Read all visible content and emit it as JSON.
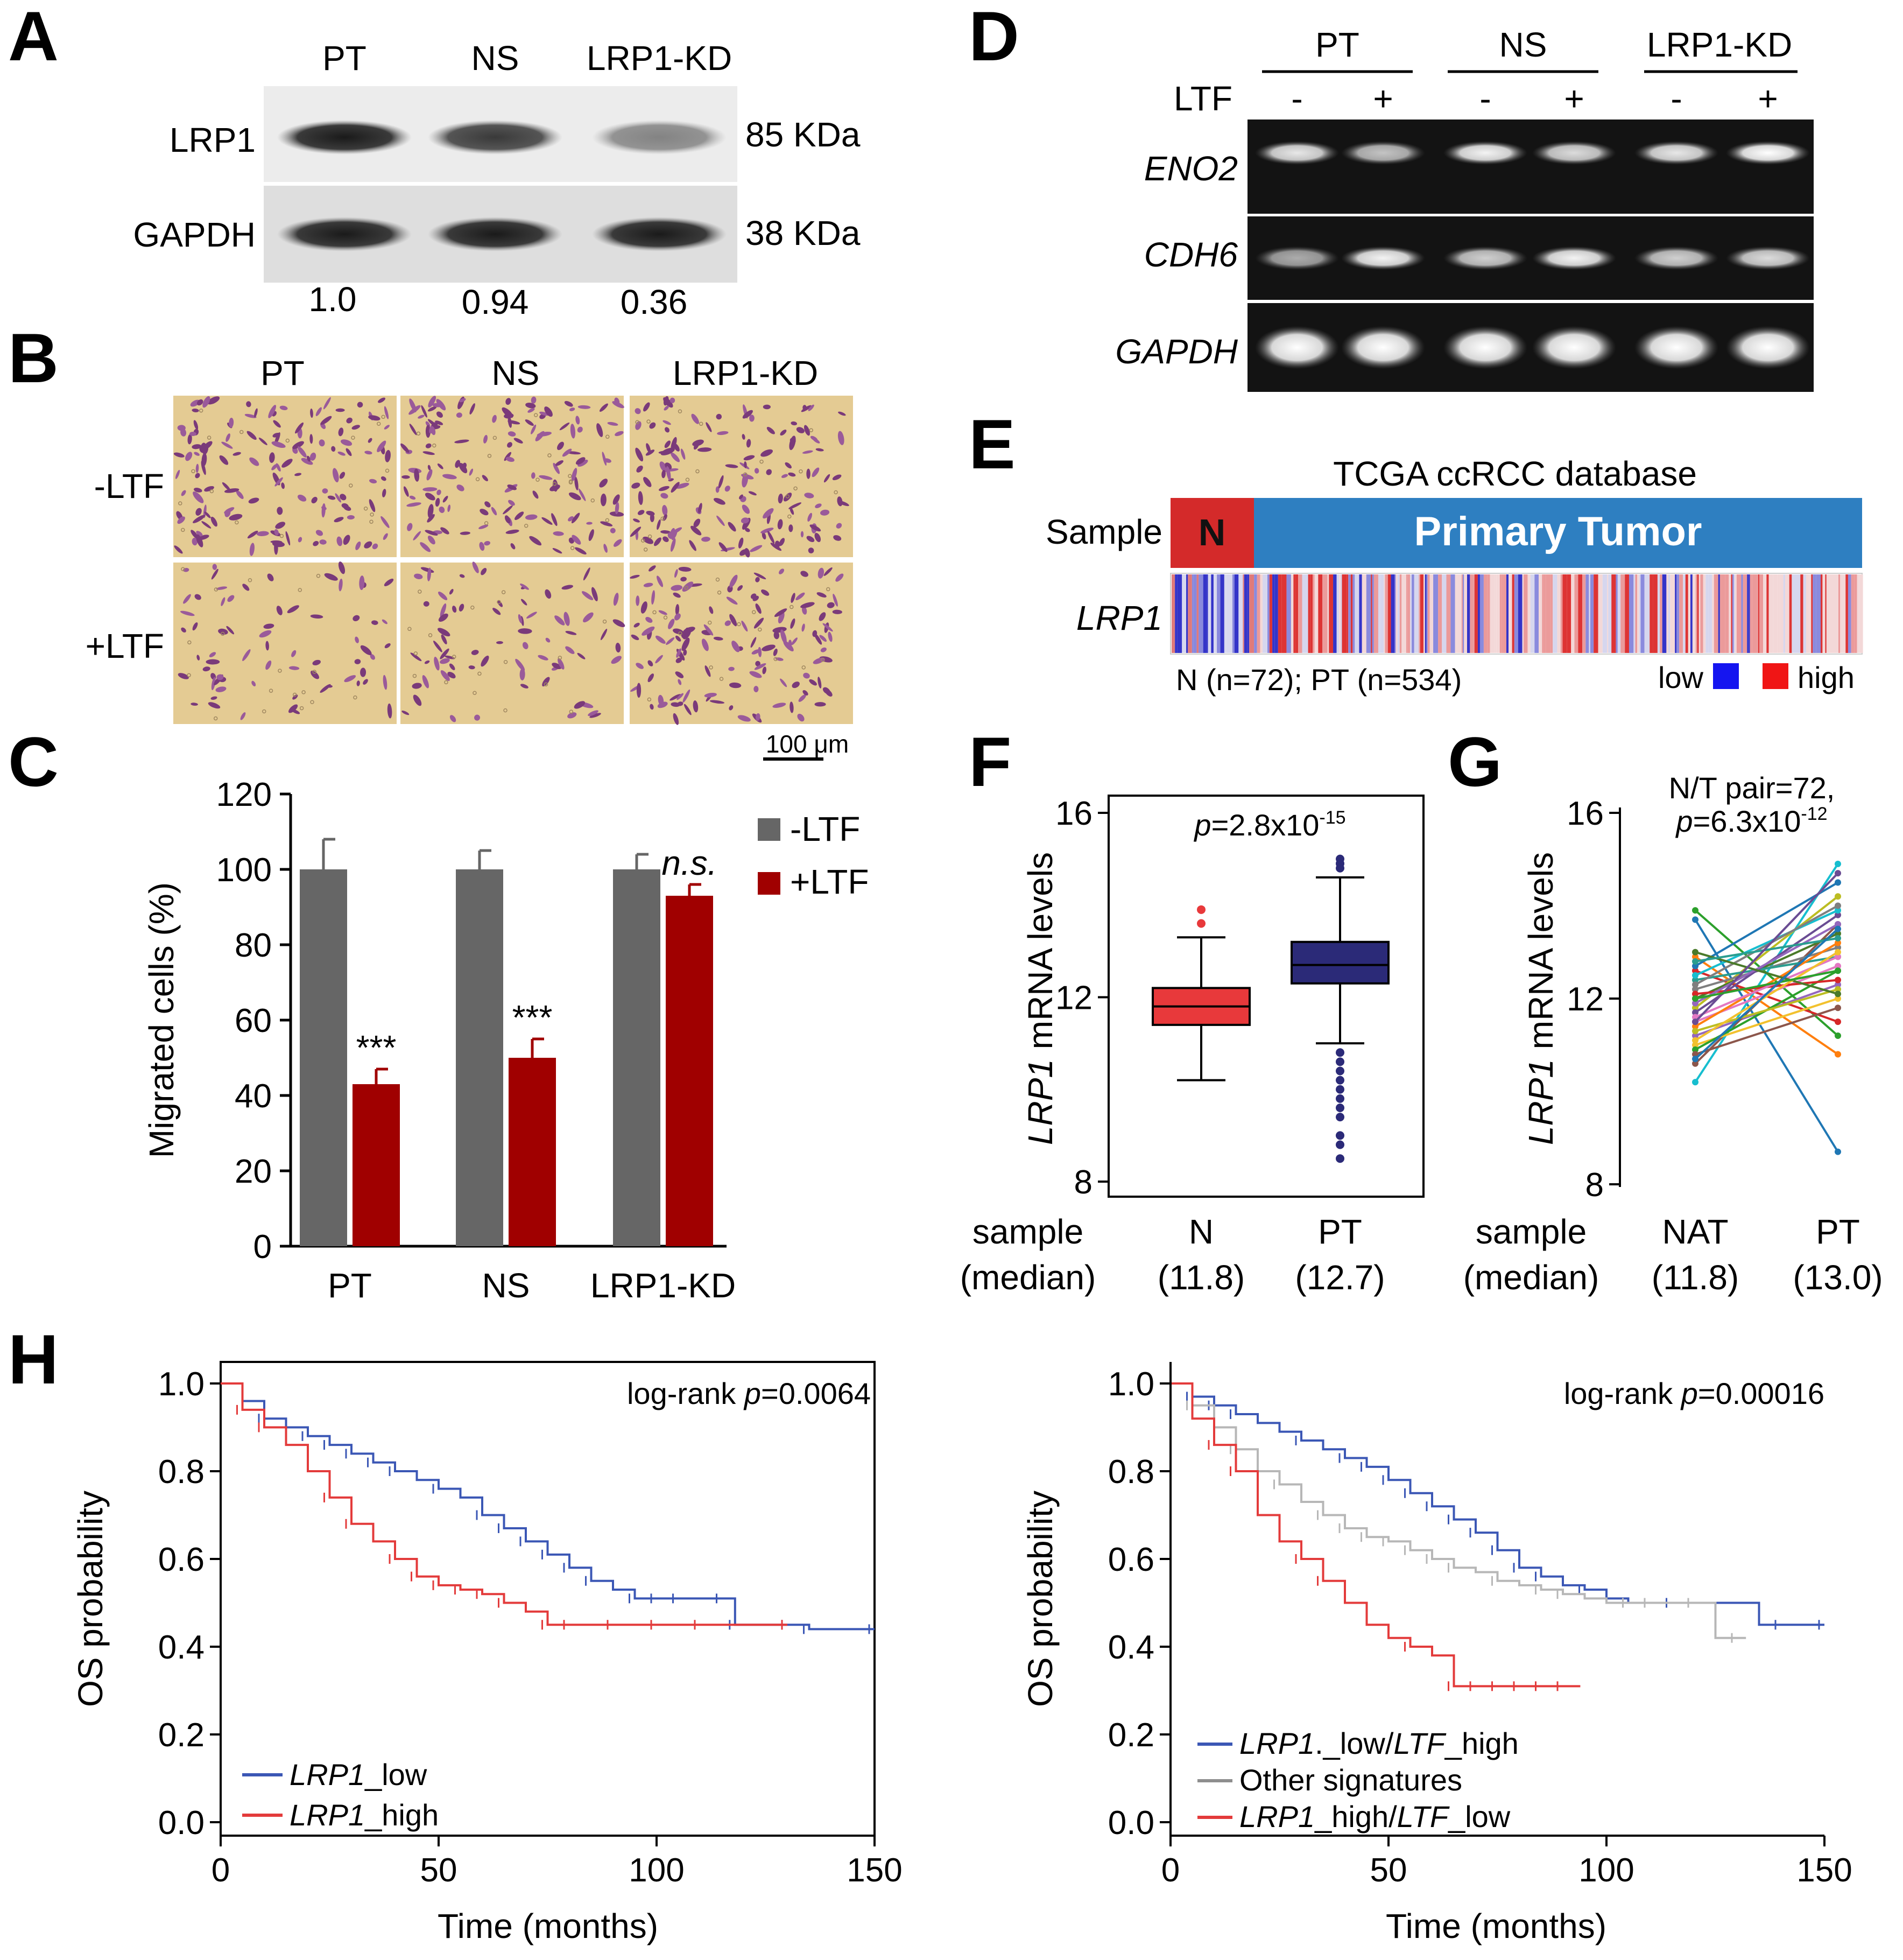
{
  "colors": {
    "grey_bar": "#666666",
    "red_bar": "#a00000",
    "box_n": "#e8393b",
    "box_pt": "#2b2a78",
    "km_low": "#3b57b5",
    "km_high": "#e33b3b",
    "km_other": "#b7b7b7",
    "tumor_bar": "#2e7fc1",
    "normal_bar": "#d42a2a",
    "heat_low": "#2b2bd6",
    "heat_high": "#e32020"
  },
  "panel_letters": [
    "A",
    "B",
    "C",
    "D",
    "E",
    "F",
    "G",
    "H"
  ],
  "panel_a": {
    "lanes": [
      "PT",
      "NS",
      "LRP1-KD"
    ],
    "rows": [
      {
        "name": "LRP1",
        "size": "85 KDa",
        "intensity": [
          1.0,
          0.85,
          0.5
        ]
      },
      {
        "name": "GAPDH",
        "size": "38 KDa",
        "intensity": [
          1.0,
          1.0,
          1.0
        ]
      }
    ],
    "quant": [
      "1.0",
      "0.94",
      "0.36"
    ]
  },
  "panel_b": {
    "columns": [
      "PT",
      "NS",
      "LRP1-KD"
    ],
    "rows": [
      "-LTF",
      "+LTF"
    ],
    "cell_density": [
      [
        1.0,
        1.0,
        1.0
      ],
      [
        0.45,
        0.5,
        0.95
      ]
    ],
    "scale_label": "100 μm"
  },
  "panel_c": {
    "chart_data": {
      "type": "bar",
      "categories": [
        "PT",
        "NS",
        "LRP1-KD"
      ],
      "series": [
        {
          "name": "-LTF",
          "values": [
            100,
            100,
            100
          ],
          "errors": [
            8,
            5,
            4
          ]
        },
        {
          "name": "+LTF",
          "values": [
            43,
            50,
            93
          ],
          "errors": [
            4,
            5,
            3
          ]
        }
      ],
      "annotations": [
        "***",
        "***",
        "n.s."
      ],
      "ylabel": "Migrated cells (%)",
      "yticks": [
        "0",
        "20",
        "40",
        "60",
        "80",
        "100",
        "120"
      ],
      "ylim": [
        0,
        120
      ]
    }
  },
  "panel_d": {
    "groups": [
      "PT",
      "NS",
      "LRP1-KD"
    ],
    "treatment_label": "LTF",
    "treatments": [
      "-",
      "+",
      "-",
      "+",
      "-",
      "+"
    ],
    "genes": [
      {
        "name": "ENO2",
        "intensity": [
          0.9,
          0.75,
          0.95,
          0.85,
          0.9,
          1.0
        ]
      },
      {
        "name": "CDH6",
        "intensity": [
          0.65,
          0.95,
          0.8,
          0.95,
          0.8,
          0.85
        ]
      },
      {
        "name": "GAPDH",
        "intensity": [
          1,
          1,
          1,
          1,
          1,
          1
        ]
      }
    ]
  },
  "panel_e": {
    "title": "TCGA ccRCC database",
    "sample_label": "Sample",
    "n_label": "N",
    "tumor_label": "Primary Tumor",
    "gene_label": "LRP1",
    "counts_label": "N (n=72); PT (n=534)",
    "legend_low": "low",
    "legend_high": "high"
  },
  "panel_f": {
    "chart_data": {
      "type": "box",
      "ylabel_gene": "LRP1",
      "ylabel_rest": " mRNA levels",
      "p_prefix": "p",
      "p_text": "=2.8x10",
      "p_exp": "-15",
      "yticks": [
        "8",
        "12",
        "16"
      ],
      "ylim": [
        8,
        16
      ],
      "row_label_1": "sample",
      "row_label_2": "(median)",
      "groups": [
        {
          "name": "N",
          "median_label": "(11.8)",
          "q1": 11.4,
          "median": 11.8,
          "q3": 12.2,
          "whisker_low": 10.2,
          "whisker_high": 13.3,
          "outliers": [
            13.6,
            13.9
          ]
        },
        {
          "name": "PT",
          "median_label": "(12.7)",
          "q1": 12.3,
          "median": 12.7,
          "q3": 13.2,
          "whisker_low": 11.0,
          "whisker_high": 14.6,
          "outliers": [
            15.0,
            14.9,
            14.8,
            10.8,
            10.6,
            10.4,
            10.2,
            10.0,
            9.8,
            9.6,
            9.4,
            9.0,
            8.8,
            8.5
          ]
        }
      ]
    }
  },
  "panel_g": {
    "chart_data": {
      "type": "paired-line",
      "ylabel_gene": "LRP1",
      "ylabel_rest": " mRNA levels",
      "title_line1": "N/T pair=72,",
      "p_prefix": "p",
      "p_text": "=6.3x10",
      "p_exp": "-12",
      "yticks": [
        "8",
        "12",
        "16"
      ],
      "ylim": [
        8,
        16
      ],
      "row_label_1": "sample",
      "row_label_2": "(median)",
      "groups": [
        {
          "name": "NAT",
          "median_label": "(11.8)"
        },
        {
          "name": "PT",
          "median_label": "(13.0)"
        }
      ],
      "pairs": [
        [
          13.9,
          11.2
        ],
        [
          13.7,
          8.7
        ],
        [
          12.9,
          10.8
        ],
        [
          12.6,
          11.5
        ],
        [
          11.2,
          12.3
        ],
        [
          10.6,
          13.6
        ],
        [
          10.2,
          14.9
        ],
        [
          11.8,
          14.2
        ],
        [
          12.2,
          13.1
        ],
        [
          11.5,
          12.7
        ],
        [
          12.0,
          13.4
        ],
        [
          11.0,
          12.0
        ],
        [
          12.4,
          12.9
        ],
        [
          11.7,
          13.8
        ],
        [
          10.9,
          12.6
        ],
        [
          12.7,
          14.5
        ],
        [
          11.4,
          13.2
        ],
        [
          12.1,
          12.4
        ],
        [
          11.9,
          13.6
        ],
        [
          10.8,
          11.8
        ],
        [
          12.5,
          13.9
        ],
        [
          11.3,
          12.2
        ],
        [
          12.3,
          14.0
        ],
        [
          11.6,
          12.9
        ],
        [
          13.0,
          12.1
        ],
        [
          11.1,
          13.0
        ],
        [
          12.8,
          13.3
        ],
        [
          11.5,
          14.7
        ],
        [
          12.0,
          12.6
        ],
        [
          10.7,
          13.5
        ]
      ]
    }
  },
  "panel_h1": {
    "chart_data": {
      "type": "line",
      "xlabel": "Time (months)",
      "ylabel": "OS probability",
      "xticks": [
        "0",
        "50",
        "100",
        "150"
      ],
      "yticks": [
        "0.0",
        "0.2",
        "0.4",
        "0.6",
        "0.8",
        "1.0"
      ],
      "xlim": [
        0,
        150
      ],
      "ylim": [
        0,
        1
      ],
      "logrank_prefix": "log-rank ",
      "p_prefix": "p",
      "p_value": "=0.0064",
      "series": [
        {
          "name": "LRP1_low",
          "gene": "LRP1",
          "suffix": "_low",
          "x": [
            0,
            5,
            10,
            15,
            20,
            25,
            30,
            35,
            40,
            45,
            50,
            55,
            60,
            65,
            70,
            75,
            80,
            85,
            90,
            95,
            100,
            105,
            110,
            115,
            118,
            120,
            125,
            130,
            135,
            150
          ],
          "y": [
            1.0,
            0.96,
            0.92,
            0.9,
            0.88,
            0.86,
            0.84,
            0.82,
            0.8,
            0.78,
            0.76,
            0.74,
            0.7,
            0.67,
            0.64,
            0.61,
            0.58,
            0.55,
            0.53,
            0.51,
            0.51,
            0.51,
            0.51,
            0.51,
            0.45,
            0.45,
            0.45,
            0.45,
            0.44,
            0.44
          ]
        },
        {
          "name": "LRP1_high",
          "gene": "LRP1",
          "suffix": "_high",
          "x": [
            0,
            5,
            10,
            15,
            20,
            25,
            30,
            35,
            40,
            45,
            50,
            55,
            60,
            65,
            70,
            75,
            80,
            90,
            100,
            110,
            120,
            130
          ],
          "y": [
            1.0,
            0.94,
            0.9,
            0.86,
            0.8,
            0.74,
            0.68,
            0.64,
            0.6,
            0.56,
            0.54,
            0.53,
            0.52,
            0.5,
            0.48,
            0.45,
            0.45,
            0.45,
            0.45,
            0.45,
            0.45,
            0.45
          ]
        }
      ]
    }
  },
  "panel_h2": {
    "chart_data": {
      "type": "line",
      "xlabel": "Time (months)",
      "ylabel": "OS probability",
      "xticks": [
        "0",
        "50",
        "100",
        "150"
      ],
      "yticks": [
        "0.0",
        "0.2",
        "0.4",
        "0.6",
        "0.8",
        "1.0"
      ],
      "xlim": [
        0,
        150
      ],
      "ylim": [
        0,
        1
      ],
      "logrank_prefix": "log-rank ",
      "p_prefix": "p",
      "p_value": "=0.00016",
      "series": [
        {
          "name": "LRP1._low/LTF_high",
          "x": [
            0,
            5,
            10,
            15,
            20,
            25,
            30,
            35,
            40,
            45,
            50,
            55,
            60,
            65,
            70,
            75,
            80,
            85,
            90,
            95,
            100,
            105,
            110,
            115,
            120,
            125,
            130,
            135,
            140,
            150
          ],
          "y": [
            1.0,
            0.97,
            0.95,
            0.93,
            0.91,
            0.89,
            0.87,
            0.85,
            0.83,
            0.81,
            0.78,
            0.75,
            0.72,
            0.69,
            0.66,
            0.62,
            0.58,
            0.56,
            0.54,
            0.53,
            0.51,
            0.5,
            0.5,
            0.5,
            0.5,
            0.5,
            0.5,
            0.45,
            0.45,
            0.45
          ]
        },
        {
          "name": "Other signatures",
          "x": [
            0,
            5,
            10,
            15,
            20,
            25,
            30,
            35,
            40,
            45,
            50,
            55,
            60,
            65,
            70,
            75,
            80,
            85,
            90,
            95,
            100,
            105,
            110,
            115,
            120,
            125,
            130,
            132
          ],
          "y": [
            1.0,
            0.95,
            0.9,
            0.85,
            0.8,
            0.77,
            0.73,
            0.7,
            0.67,
            0.65,
            0.64,
            0.62,
            0.6,
            0.58,
            0.57,
            0.55,
            0.54,
            0.53,
            0.52,
            0.51,
            0.5,
            0.5,
            0.5,
            0.5,
            0.5,
            0.42,
            0.42,
            0.42
          ]
        },
        {
          "name": "LRP1_high/LTF_low",
          "x": [
            0,
            5,
            10,
            15,
            20,
            25,
            30,
            35,
            40,
            45,
            50,
            55,
            60,
            65,
            70,
            75,
            80,
            85,
            90,
            94
          ],
          "y": [
            1.0,
            0.92,
            0.86,
            0.8,
            0.7,
            0.64,
            0.6,
            0.55,
            0.5,
            0.45,
            0.42,
            0.4,
            0.38,
            0.31,
            0.31,
            0.31,
            0.31,
            0.31,
            0.31,
            0.31
          ]
        }
      ],
      "legend": [
        {
          "gene1": "LRP1",
          "mid": "._low/",
          "gene2": "LTF",
          "end": "_high"
        },
        {
          "text": "Other signatures"
        },
        {
          "gene1": "LRP1",
          "mid": "_high/",
          "gene2": "LTF",
          "end": "_low"
        }
      ]
    }
  }
}
